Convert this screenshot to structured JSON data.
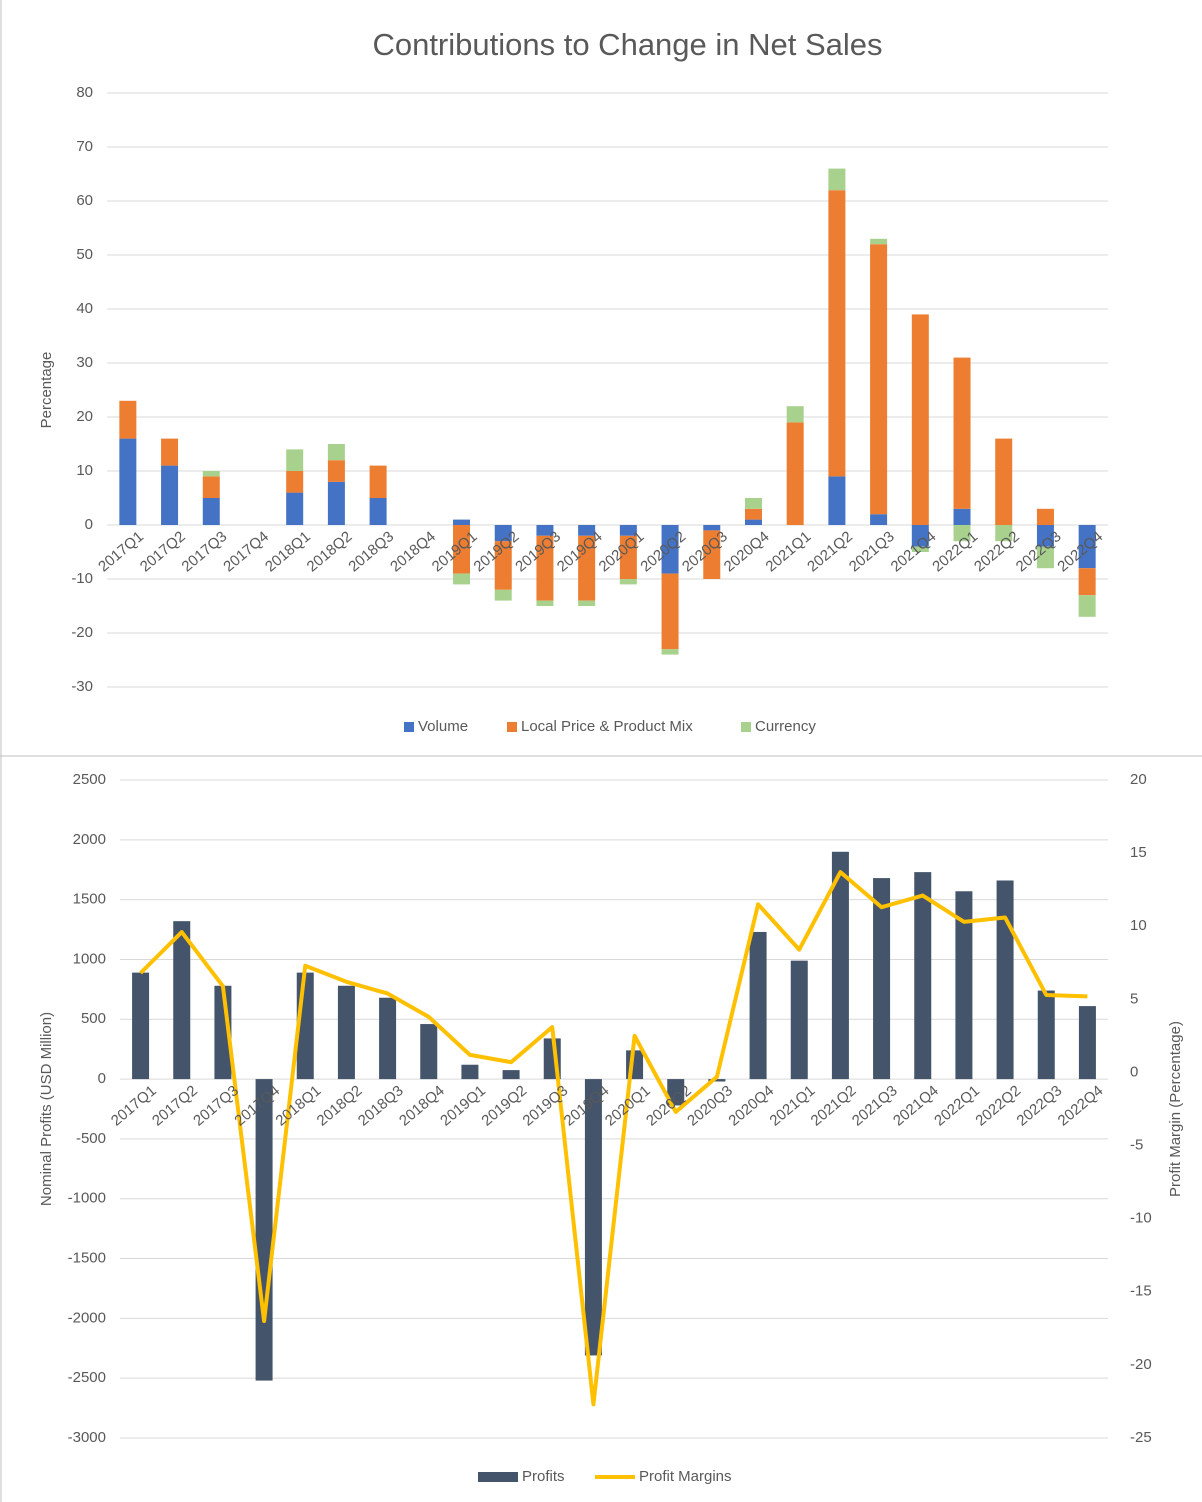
{
  "chart_data": [
    {
      "type": "bar",
      "stacked": true,
      "title": "Contributions to Change in Net Sales",
      "y_label": "Percentage",
      "categories": [
        "2017Q1",
        "2017Q2",
        "2017Q3",
        "2017Q4",
        "2018Q1",
        "2018Q2",
        "2018Q3",
        "2018Q4",
        "2019Q1",
        "2019Q2",
        "2019Q3",
        "2019Q4",
        "2020Q1",
        "2020Q2",
        "2020Q3",
        "2020Q4",
        "2021Q1",
        "2021Q2",
        "2021Q3",
        "2021Q4",
        "2022Q1",
        "2022Q2",
        "2022Q3",
        "2022Q4"
      ],
      "series": [
        {
          "name": "Volume",
          "color": "#4472c4",
          "values": [
            16,
            11,
            5,
            0,
            6,
            8,
            5,
            0,
            1,
            -3,
            -2,
            -2,
            -2,
            -9,
            -1,
            1,
            0,
            9,
            2,
            -4,
            3,
            0,
            -4,
            -8
          ]
        },
        {
          "name": "Local Price & Product Mix",
          "color": "#ed7d31",
          "values": [
            7,
            5,
            4,
            0,
            4,
            4,
            6,
            0,
            -9,
            -9,
            -12,
            -12,
            -8,
            -14,
            -9,
            2,
            19,
            53,
            50,
            39,
            28,
            16,
            3,
            -5
          ]
        },
        {
          "name": "Currency",
          "color": "#a9d18e",
          "values": [
            0,
            0,
            1,
            0,
            4,
            3,
            0,
            0,
            -2,
            -2,
            -1,
            -1,
            -1,
            -1,
            0,
            2,
            3,
            4,
            1,
            -1,
            -3,
            -3,
            -4,
            -4
          ]
        }
      ],
      "ylim": [
        -30,
        80
      ],
      "yticks": [
        -30,
        -20,
        -10,
        0,
        10,
        20,
        30,
        40,
        50,
        60,
        70,
        80
      ],
      "grid": true,
      "legend": "bottom"
    },
    {
      "type": "bar",
      "y_label": "Nominal Profits (USD Million)",
      "y2_label": "Profit Margin (Percentage)",
      "categories": [
        "2017Q1",
        "2017Q2",
        "2017Q3",
        "2017Q4",
        "2018Q1",
        "2018Q2",
        "2018Q3",
        "2018Q4",
        "2019Q1",
        "2019Q2",
        "2019Q3",
        "2019Q4",
        "2020Q1",
        "2020Q2",
        "2020Q3",
        "2020Q4",
        "2021Q1",
        "2021Q2",
        "2021Q3",
        "2021Q4",
        "2022Q1",
        "2022Q2",
        "2022Q3",
        "2022Q4"
      ],
      "series": [
        {
          "name": "Profits",
          "color": "#44546a",
          "values": [
            890,
            1320,
            780,
            -2520,
            890,
            780,
            680,
            460,
            120,
            75,
            340,
            -2310,
            240,
            -220,
            -20,
            1230,
            990,
            1900,
            1680,
            1730,
            1570,
            1660,
            740,
            610
          ]
        },
        {
          "name": "Profit Margins",
          "type": "line",
          "axis": "y2",
          "color": "#ffc000",
          "values": [
            6.8,
            9.6,
            5.9,
            -17,
            7.3,
            6.2,
            5.4,
            3.8,
            1.2,
            0.7,
            3.1,
            -22.7,
            2.5,
            -2.7,
            -0.3,
            11.5,
            8.4,
            13.7,
            11.3,
            12.1,
            10.3,
            10.6,
            5.3,
            5.2
          ]
        }
      ],
      "ylim": [
        -3000,
        2500
      ],
      "yticks": [
        -3000,
        -2500,
        -2000,
        -1500,
        -1000,
        -500,
        0,
        500,
        1000,
        1500,
        2000,
        2500
      ],
      "y2lim": [
        -25,
        20
      ],
      "y2ticks": [
        -25,
        -20,
        -15,
        -10,
        -5,
        0,
        5,
        10,
        15,
        20
      ],
      "grid": true,
      "legend": "bottom"
    }
  ]
}
